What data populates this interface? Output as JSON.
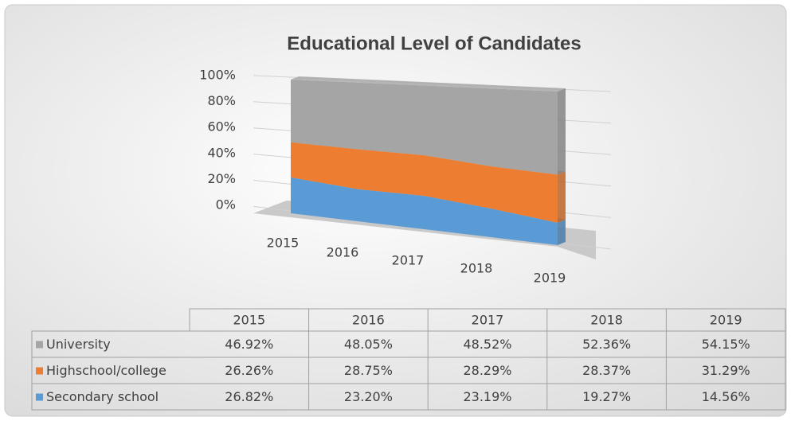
{
  "chart_data": {
    "type": "area",
    "stacked": true,
    "title": "Educational Level of  Candidates",
    "categories": [
      "2015",
      "2016",
      "2017",
      "2018",
      "2019"
    ],
    "series": [
      {
        "name": "University",
        "color": "#a5a5a5",
        "values": [
          46.92,
          48.05,
          48.52,
          52.36,
          54.15
        ],
        "value_labels": [
          "46.92%",
          "48.05%",
          "48.52%",
          "52.36%",
          "54.15%"
        ]
      },
      {
        "name": "Highschool/college",
        "color": "#ed7d31",
        "values": [
          26.26,
          28.75,
          28.29,
          28.37,
          31.29
        ],
        "value_labels": [
          "26.26%",
          "28.75%",
          "28.29%",
          "28.37%",
          "31.29%"
        ]
      },
      {
        "name": "Secondary school",
        "color": "#5b9bd5",
        "values": [
          26.82,
          23.2,
          23.19,
          19.27,
          14.56
        ],
        "value_labels": [
          "26.82%",
          "23.20%",
          "23.19%",
          "19.27%",
          "14.56%"
        ]
      }
    ],
    "ylim": [
      0,
      100
    ],
    "yticks": [
      {
        "value": 0,
        "label": "0%"
      },
      {
        "value": 20,
        "label": "20%"
      },
      {
        "value": 40,
        "label": "40%"
      },
      {
        "value": 60,
        "label": "60%"
      },
      {
        "value": 80,
        "label": "80%"
      },
      {
        "value": 100,
        "label": "100%"
      }
    ],
    "grid": true
  }
}
